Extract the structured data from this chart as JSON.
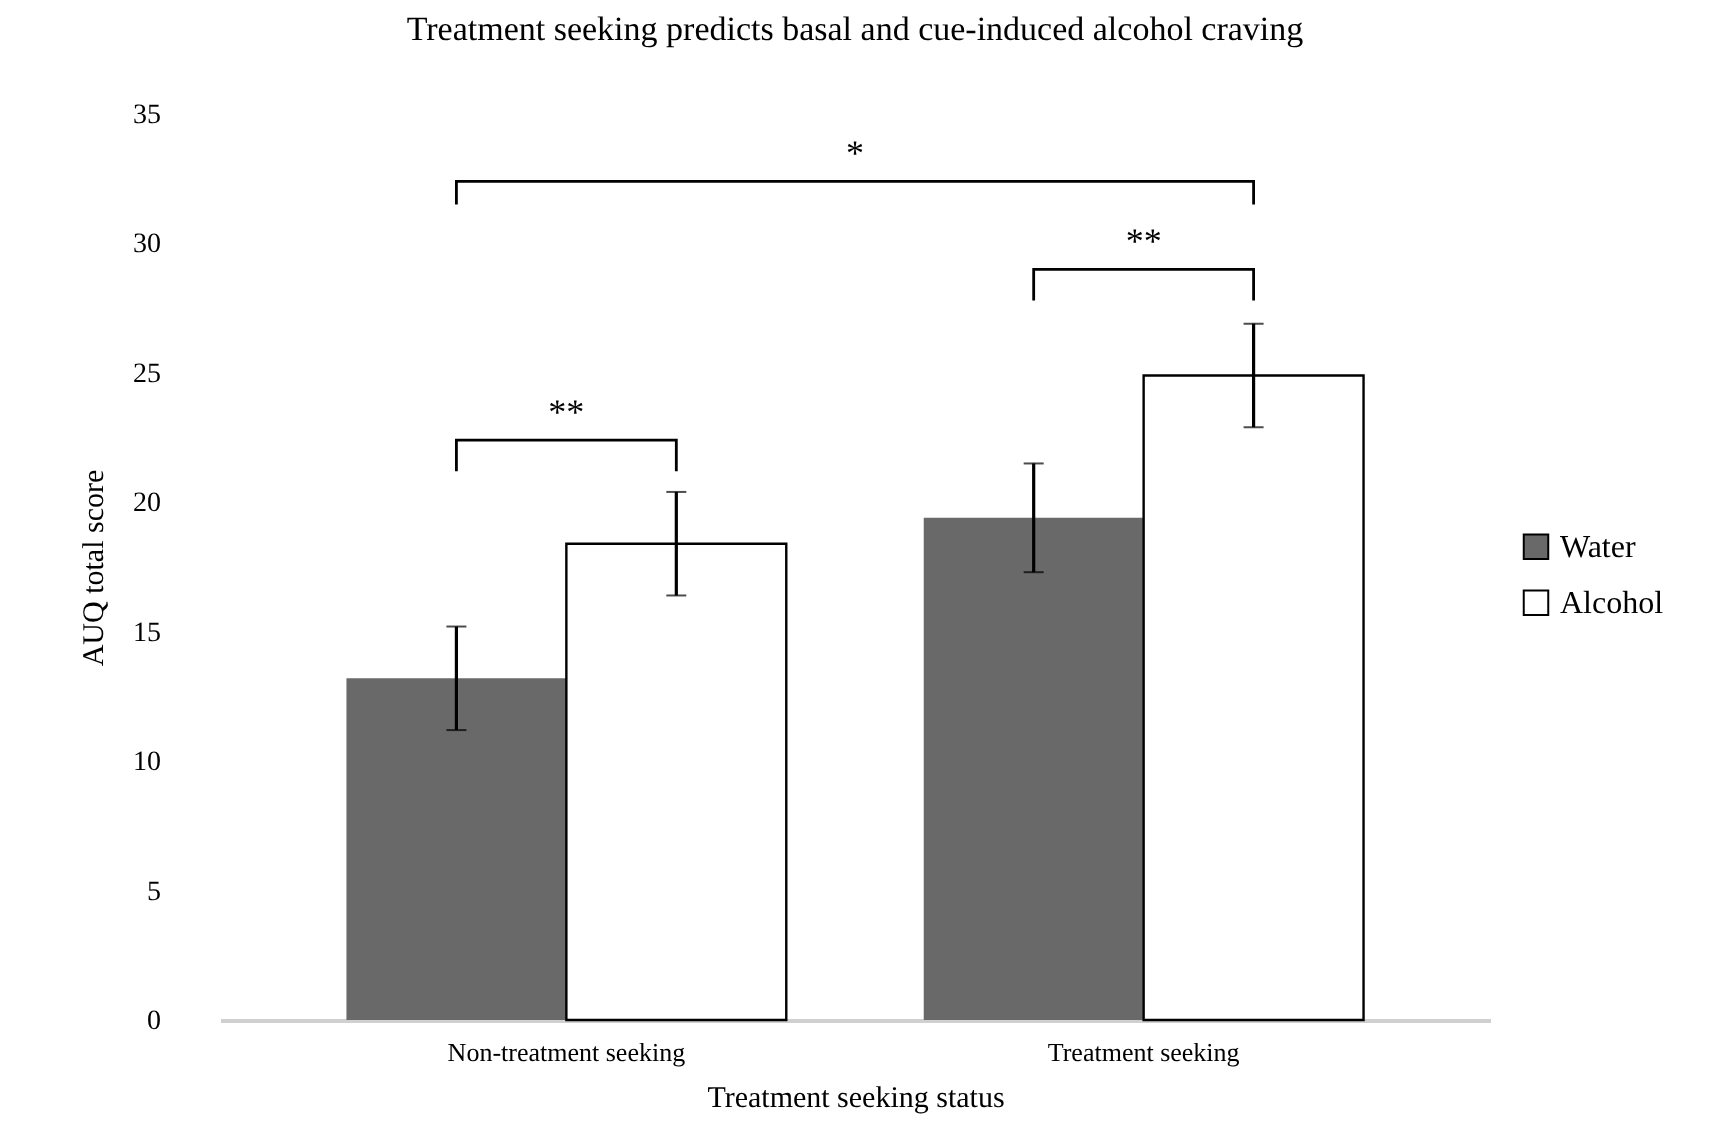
{
  "chart_data": {
    "type": "bar",
    "title": "Treatment seeking predicts basal and cue-induced alcohol craving",
    "xlabel": "Treatment seeking status",
    "ylabel": "AUQ total score",
    "categories": [
      "Non-treatment seeking",
      "Treatment seeking"
    ],
    "series": [
      {
        "name": "Water",
        "color": "#696969",
        "values": [
          13.2,
          19.4
        ],
        "errors": [
          2.0,
          2.1
        ]
      },
      {
        "name": "Alcohol",
        "color": "#ffffff",
        "values": [
          18.4,
          24.9
        ],
        "errors": [
          2.0,
          2.0
        ]
      }
    ],
    "ylim": [
      0,
      35
    ],
    "yticks": [
      0,
      5,
      10,
      15,
      20,
      25,
      30,
      35
    ],
    "annotations": [
      "**",
      "**",
      "*"
    ],
    "legend": "right",
    "grid": false
  }
}
